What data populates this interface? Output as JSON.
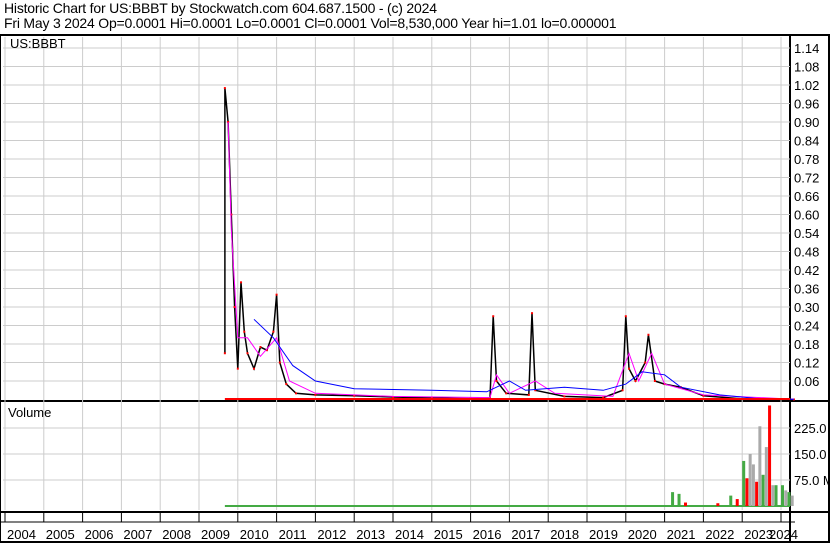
{
  "header": {
    "title": "Historic Chart for US:BBBT by Stockwatch.com 604.687.1500 - (c) 2024",
    "quote": "Fri May  3 2024   Op=0.0001   Hi=0.0001   Lo=0.0001   Cl=0.0001   Vol=8,530,000   Year hi=1.01   lo=0.000001"
  },
  "chart_data": [
    {
      "type": "line",
      "title": "US:BBBT",
      "xlim": [
        "2004-01",
        "2024-06"
      ],
      "ylim": [
        0,
        1.17
      ],
      "yticks": [
        "1.14",
        "1.08",
        "1.02",
        "0.96",
        "0.90",
        "0.84",
        "0.78",
        "0.72",
        "0.66",
        "0.60",
        "0.54",
        "0.48",
        "0.42",
        "0.36",
        "0.30",
        "0.24",
        "0.18",
        "0.12",
        "0.06"
      ],
      "grid": true,
      "colors": {
        "price": "#000000",
        "ma_short": "#ff00ff",
        "ma_long": "#0000ff",
        "down": "#ff0000"
      },
      "series": [
        {
          "key": "price",
          "points": [
            [
              "2009-09",
              0.15
            ],
            [
              "2009-09",
              1.01
            ],
            [
              "2009-10",
              0.9
            ],
            [
              "2009-11",
              0.6
            ],
            [
              "2009-12",
              0.3
            ],
            [
              "2010-01",
              0.1
            ],
            [
              "2010-02",
              0.38
            ],
            [
              "2010-03",
              0.22
            ],
            [
              "2010-04",
              0.15
            ],
            [
              "2010-06",
              0.1
            ],
            [
              "2010-08",
              0.17
            ],
            [
              "2010-10",
              0.16
            ],
            [
              "2010-12",
              0.22
            ],
            [
              "2011-01",
              0.34
            ],
            [
              "2011-02",
              0.12
            ],
            [
              "2011-04",
              0.05
            ],
            [
              "2011-07",
              0.02
            ],
            [
              "2012-01",
              0.015
            ],
            [
              "2013-01",
              0.012
            ],
            [
              "2014-01",
              0.008
            ],
            [
              "2015-01",
              0.005
            ],
            [
              "2016-01",
              0.003
            ],
            [
              "2016-07",
              0.005
            ],
            [
              "2016-08",
              0.27
            ],
            [
              "2016-09",
              0.06
            ],
            [
              "2016-12",
              0.02
            ],
            [
              "2017-07",
              0.015
            ],
            [
              "2017-08",
              0.28
            ],
            [
              "2017-09",
              0.03
            ],
            [
              "2018-06",
              0.01
            ],
            [
              "2019-06",
              0.006
            ],
            [
              "2019-12",
              0.03
            ],
            [
              "2020-01",
              0.27
            ],
            [
              "2020-02",
              0.1
            ],
            [
              "2020-04",
              0.06
            ],
            [
              "2020-07",
              0.12
            ],
            [
              "2020-08",
              0.21
            ],
            [
              "2020-10",
              0.06
            ],
            [
              "2021-01",
              0.05
            ],
            [
              "2021-06",
              0.04
            ],
            [
              "2022-01",
              0.012
            ],
            [
              "2023-01",
              0.002
            ],
            [
              "2024-05",
              0.0001
            ]
          ]
        },
        {
          "key": "ma_short",
          "points": [
            [
              "2009-10",
              0.9
            ],
            [
              "2009-11",
              0.55
            ],
            [
              "2010-01",
              0.2
            ],
            [
              "2010-04",
              0.2
            ],
            [
              "2010-08",
              0.14
            ],
            [
              "2011-01",
              0.2
            ],
            [
              "2011-05",
              0.06
            ],
            [
              "2012-01",
              0.02
            ],
            [
              "2014-01",
              0.01
            ],
            [
              "2016-07",
              0.006
            ],
            [
              "2016-09",
              0.08
            ],
            [
              "2017-01",
              0.02
            ],
            [
              "2017-09",
              0.06
            ],
            [
              "2018-03",
              0.02
            ],
            [
              "2019-09",
              0.01
            ],
            [
              "2020-02",
              0.15
            ],
            [
              "2020-05",
              0.06
            ],
            [
              "2020-09",
              0.15
            ],
            [
              "2021-01",
              0.05
            ],
            [
              "2022-01",
              0.015
            ],
            [
              "2024-05",
              0.001
            ]
          ]
        },
        {
          "key": "ma_long",
          "points": [
            [
              "2010-06",
              0.26
            ],
            [
              "2010-12",
              0.2
            ],
            [
              "2011-06",
              0.11
            ],
            [
              "2012-01",
              0.06
            ],
            [
              "2013-01",
              0.035
            ],
            [
              "2015-01",
              0.03
            ],
            [
              "2016-06",
              0.025
            ],
            [
              "2017-01",
              0.06
            ],
            [
              "2017-06",
              0.03
            ],
            [
              "2018-06",
              0.04
            ],
            [
              "2019-06",
              0.03
            ],
            [
              "2020-01",
              0.05
            ],
            [
              "2020-06",
              0.09
            ],
            [
              "2021-01",
              0.08
            ],
            [
              "2021-06",
              0.04
            ],
            [
              "2022-06",
              0.015
            ],
            [
              "2023-06",
              0.003
            ],
            [
              "2024-05",
              0.001
            ]
          ]
        }
      ]
    },
    {
      "type": "bar",
      "title": "Volume",
      "ylim": [
        0,
        300
      ],
      "yticks": [
        "225.0",
        "150.0",
        "75.0 M"
      ],
      "colors": {
        "up": "#44aa44",
        "down": "#ff0000",
        "flat": "#aaaaaa"
      },
      "values": [
        [
          "2021-03",
          40,
          "up"
        ],
        [
          "2021-05",
          35,
          "up"
        ],
        [
          "2021-07",
          10,
          "down"
        ],
        [
          "2022-05",
          8,
          "down"
        ],
        [
          "2022-09",
          30,
          "up"
        ],
        [
          "2022-11",
          20,
          "down"
        ],
        [
          "2023-01",
          130,
          "up"
        ],
        [
          "2023-02",
          80,
          "down"
        ],
        [
          "2023-03",
          150,
          "flat"
        ],
        [
          "2023-04",
          120,
          "flat"
        ],
        [
          "2023-05",
          70,
          "down"
        ],
        [
          "2023-06",
          230,
          "flat"
        ],
        [
          "2023-07",
          90,
          "up"
        ],
        [
          "2023-08",
          170,
          "flat"
        ],
        [
          "2023-09",
          290,
          "down"
        ],
        [
          "2023-10",
          60,
          "flat"
        ],
        [
          "2023-11",
          60,
          "up"
        ],
        [
          "2024-01",
          60,
          "up"
        ],
        [
          "2024-02",
          45,
          "flat"
        ],
        [
          "2024-03",
          40,
          "up"
        ],
        [
          "2024-04",
          30,
          "flat"
        ]
      ]
    }
  ],
  "xaxis": {
    "years": [
      "2004",
      "2005",
      "2006",
      "2007",
      "2008",
      "2009",
      "2010",
      "2011",
      "2012",
      "2013",
      "2014",
      "2015",
      "2016",
      "2017",
      "2018",
      "2019",
      "2020",
      "2021",
      "2022",
      "2023",
      "2024"
    ]
  }
}
